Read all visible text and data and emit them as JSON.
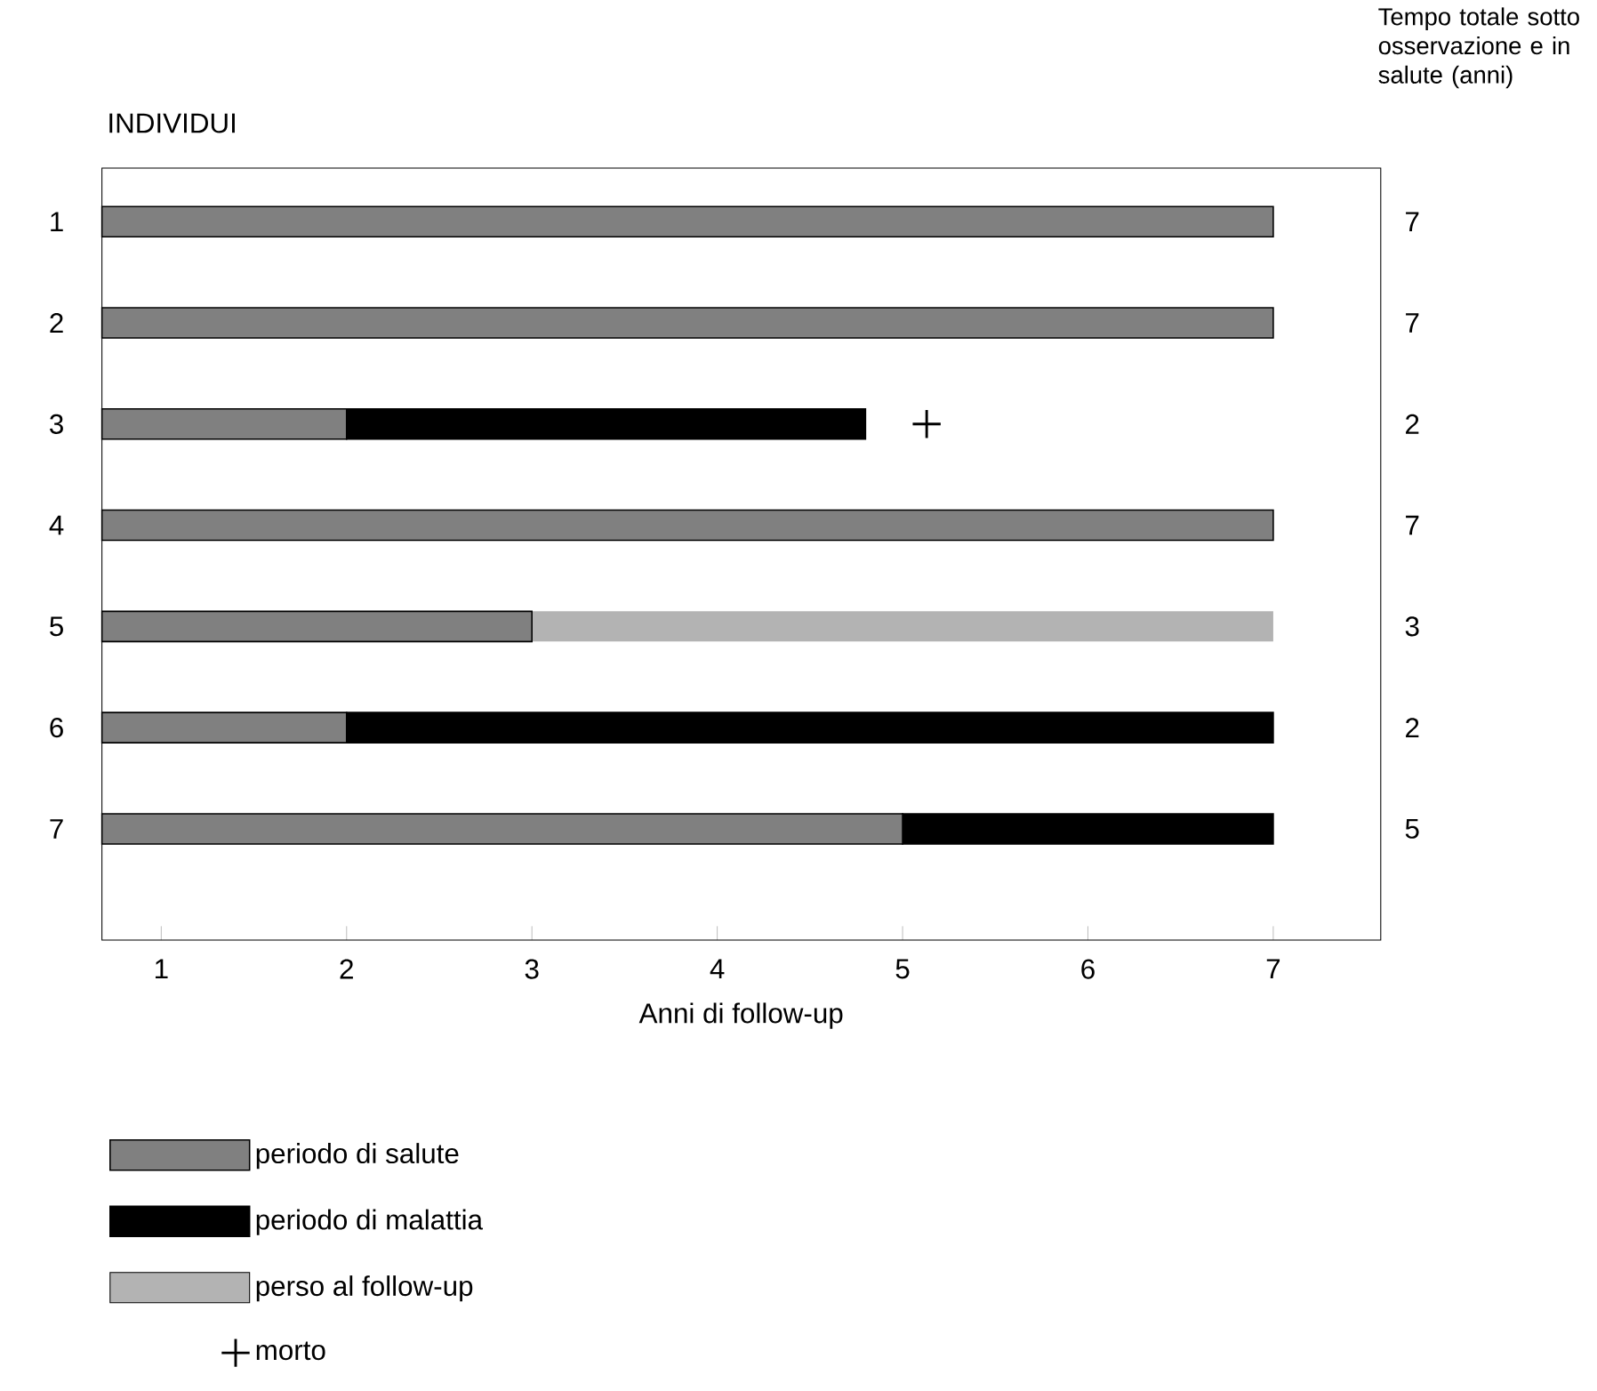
{
  "chart_data": {
    "type": "bar",
    "orientation": "horizontal",
    "stacked": true,
    "ylabel": "INDIVIDUI",
    "xlabel": "Anni di follow-up",
    "y2label": "Tempo totale sotto osservazione e in salute (anni)",
    "categories": [
      "1",
      "2",
      "3",
      "4",
      "5",
      "6",
      "7"
    ],
    "xlim": [
      0.68,
      7.58
    ],
    "xticks": [
      1,
      2,
      3,
      4,
      5,
      6,
      7
    ],
    "legend": "bottom",
    "grid": false,
    "series": [
      {
        "name": "periodo di salute",
        "color": "#808080",
        "line_style": "solid",
        "values": [
          7,
          7,
          2,
          7,
          3,
          2,
          5
        ],
        "value_labels": [
          "7",
          "7",
          "2",
          "7",
          "3",
          "2",
          "5"
        ]
      },
      {
        "name": "periodo di malattia",
        "color": "#000000",
        "line_style": "solid",
        "values": [
          null,
          null,
          2.8,
          null,
          null,
          5,
          2
        ]
      },
      {
        "name": "perso al follow-up",
        "color": "#b3b3b3",
        "line_style": "dashed",
        "values": [
          null,
          null,
          null,
          null,
          4,
          null,
          null
        ]
      },
      {
        "name": "morto",
        "type": "scatter",
        "marker": "cross",
        "color": "#000000",
        "values": [
          null,
          null,
          5.13,
          null,
          null,
          null,
          null
        ]
      }
    ]
  }
}
